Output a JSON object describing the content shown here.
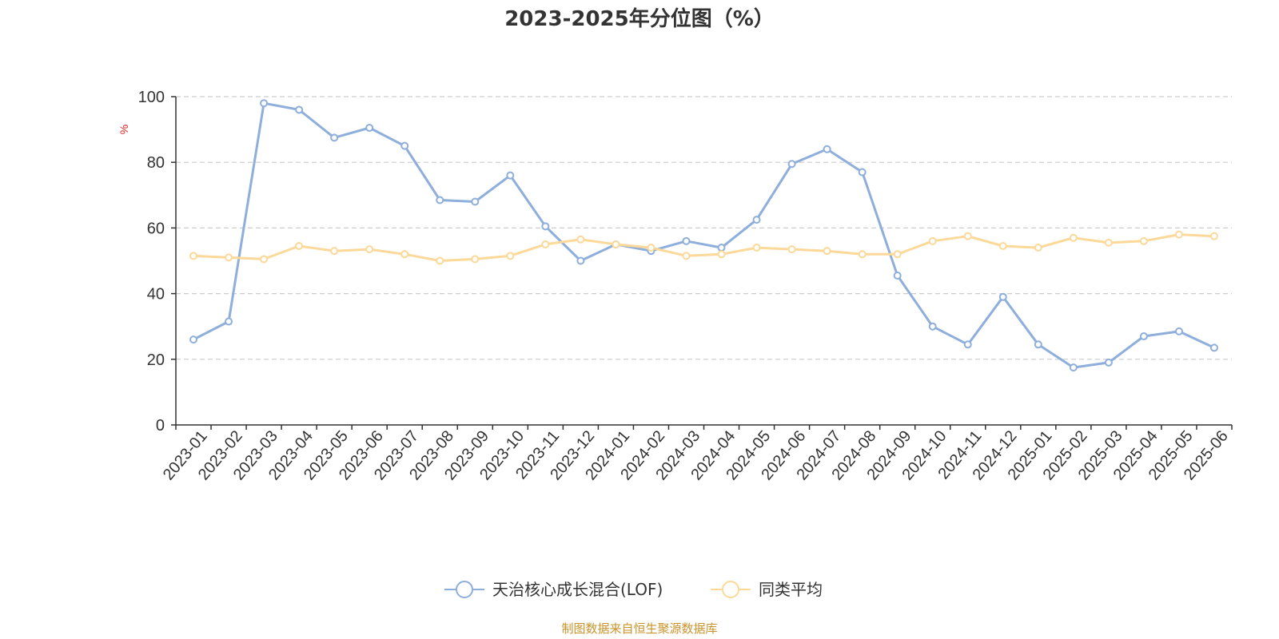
{
  "chart_data": {
    "type": "line",
    "title": "2023-2025年分位图（%）",
    "ylabel": "%",
    "ylim": [
      0,
      100
    ],
    "yticks": [
      "0",
      "20",
      "40",
      "60",
      "80",
      "100"
    ],
    "grid": true,
    "legend_position": "bottom",
    "categories": [
      "2023-01",
      "2023-02",
      "2023-03",
      "2023-04",
      "2023-05",
      "2023-06",
      "2023-07",
      "2023-08",
      "2023-09",
      "2023-10",
      "2023-11",
      "2023-12",
      "2024-01",
      "2024-02",
      "2024-03",
      "2024-04",
      "2024-05",
      "2024-06",
      "2024-07",
      "2024-08",
      "2024-09",
      "2024-10",
      "2024-11",
      "2024-12",
      "2025-01",
      "2025-02",
      "2025-03",
      "2025-04",
      "2025-05",
      "2025-06"
    ],
    "series": [
      {
        "name": "天治核心成长混合(LOF)",
        "color": "#8eaedb",
        "values": [
          26,
          31.5,
          98,
          96,
          87.5,
          90.5,
          85,
          68.5,
          68,
          76,
          60.5,
          50,
          55,
          53,
          56,
          54,
          62.5,
          79.5,
          84,
          77,
          45.5,
          30,
          24.5,
          39,
          24.5,
          17.5,
          19,
          27,
          28.5,
          23.5
        ]
      },
      {
        "name": "同类平均",
        "color": "#fcd899",
        "values": [
          51.5,
          51,
          50.5,
          54.5,
          53,
          53.5,
          52,
          50,
          50.5,
          51.5,
          55,
          56.5,
          55,
          54,
          51.5,
          52,
          54,
          53.5,
          53,
          52,
          52,
          56,
          57.5,
          54.5,
          54,
          57,
          55.5,
          56,
          58,
          57.5
        ]
      }
    ]
  },
  "colors": {
    "axis": "#333333",
    "grid": "#cccccc",
    "ylabel": "#e02020",
    "source": "#c8932a"
  },
  "source_text": "制图数据来自恒生聚源数据库"
}
